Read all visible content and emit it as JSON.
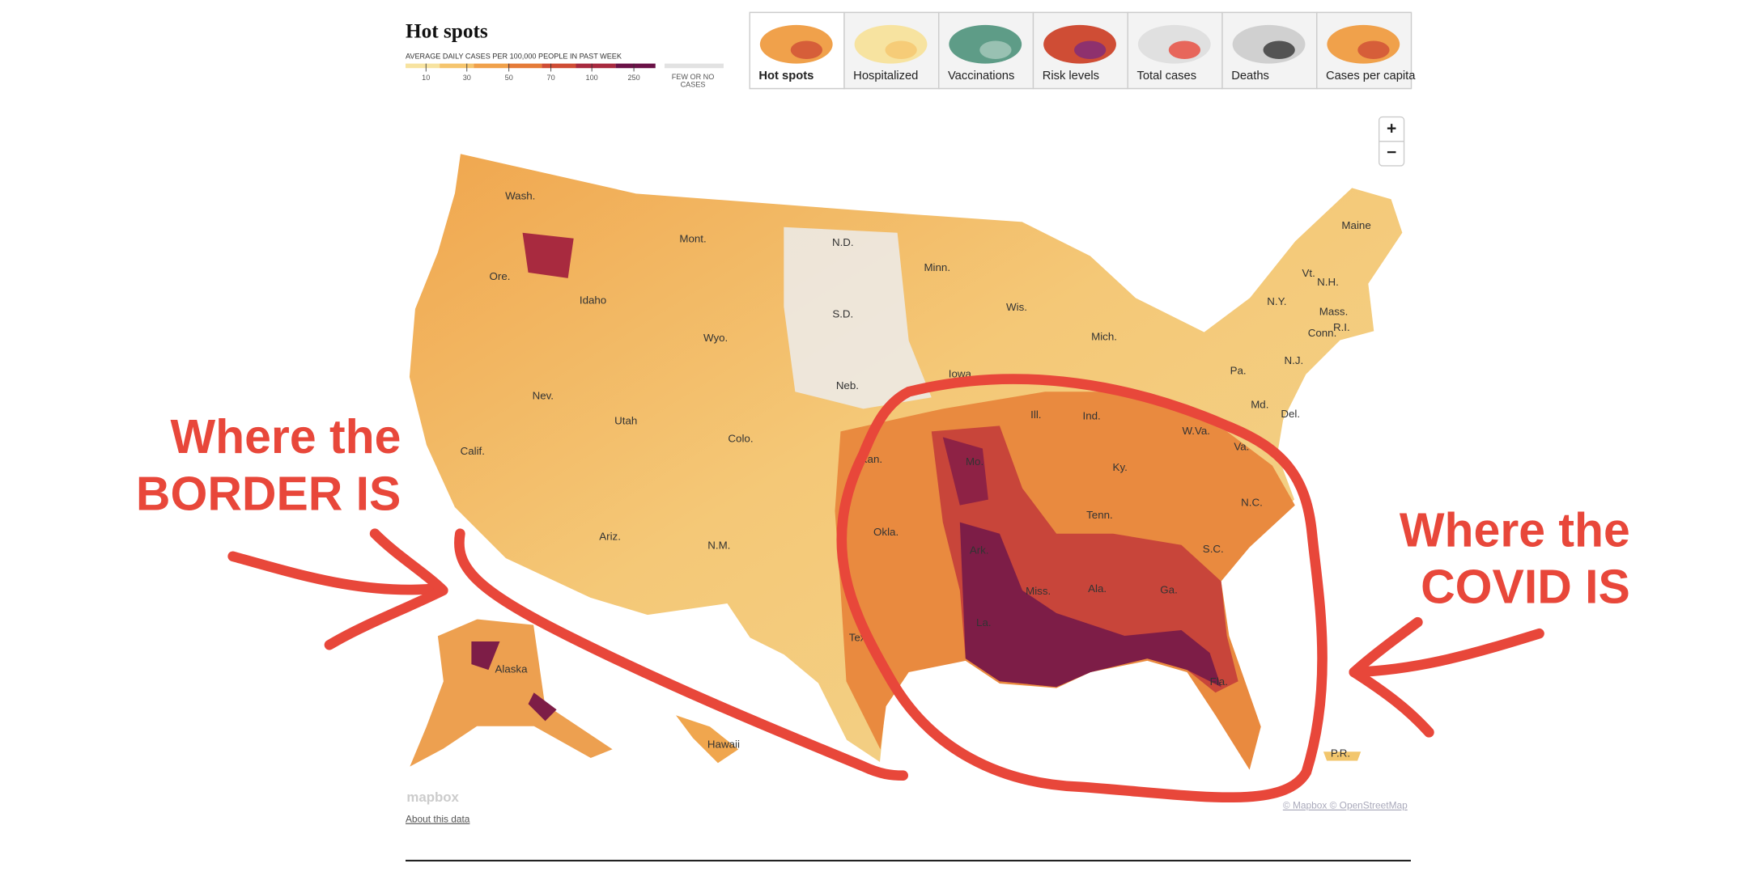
{
  "header": {
    "title": "Hot spots",
    "legend_title": "AVERAGE DAILY CASES PER 100,000 PEOPLE IN PAST WEEK",
    "legend_ticks": [
      10,
      30,
      50,
      70,
      100,
      250
    ],
    "no_cases": [
      "FEW OR NO",
      "CASES"
    ]
  },
  "tabs": [
    "Hot spots",
    "Hospitalized",
    "Vaccinations",
    "Risk levels",
    "Total cases",
    "Deaths",
    "Cases per capita"
  ],
  "zoom": {
    "in": "+",
    "out": "−"
  },
  "map": {
    "labels": [
      "Wash.",
      "Ore.",
      "Calif.",
      "Idaho",
      "Mont.",
      "Wyo.",
      "Nev.",
      "Utah",
      "Ariz.",
      "Colo.",
      "N.M.",
      "N.D.",
      "S.D.",
      "Neb.",
      "Kan.",
      "Okla.",
      "Tex.",
      "Minn.",
      "Iowa",
      "Mo.",
      "Ark.",
      "La.",
      "Wis.",
      "Ill.",
      "Mich.",
      "Ind.",
      "Ky.",
      "Tenn.",
      "Miss.",
      "Ala.",
      "Ga.",
      "Fla.",
      "S.C.",
      "N.C.",
      "Va.",
      "W.Va.",
      "Pa.",
      "N.Y.",
      "Vt.",
      "N.H.",
      "Maine",
      "Mass.",
      "Conn.",
      "R.I.",
      "N.J.",
      "Del.",
      "Md.",
      "Alaska",
      "Hawaii",
      "P.R."
    ],
    "logo": "mapbox",
    "attribution": "© Mapbox © OpenStreetMap"
  },
  "about": "About this data",
  "annotations": {
    "left": [
      "Where the",
      "BORDER IS"
    ],
    "right": [
      "Where the",
      "COVID IS"
    ]
  }
}
